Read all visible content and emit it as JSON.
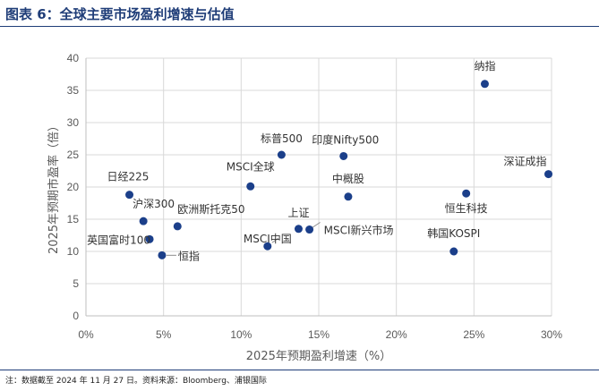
{
  "figure": {
    "title": "图表 6：全球主要市场盈利增速与估值",
    "note": "注：数据截至 2024 年 11 月 27 日。资料来源：Bloomberg、浦银国际"
  },
  "colors": {
    "accent": "#1f3d78",
    "point": "#1b3f8a",
    "grid": "#d9d9d9",
    "axis": "#bfbfbf",
    "text": "#595959"
  },
  "chart_data": {
    "type": "scatter",
    "title": "",
    "xlabel": "2025年预期盈利增速（%）",
    "ylabel": "2025年预期市盈率（倍）",
    "xlim": [
      0,
      30
    ],
    "ylim": [
      0,
      40
    ],
    "x_ticks": [
      0,
      5,
      10,
      15,
      20,
      25,
      30
    ],
    "x_tick_labels": [
      "0%",
      "5%",
      "10%",
      "15%",
      "20%",
      "25%",
      "30%"
    ],
    "y_ticks": [
      0,
      5,
      10,
      15,
      20,
      25,
      30,
      35,
      40
    ],
    "y_tick_labels": [
      "0",
      "5",
      "10",
      "15",
      "20",
      "25",
      "30",
      "35",
      "40"
    ],
    "grid": true,
    "points": [
      {
        "label": "纳指",
        "x": 25.7,
        "y": 36.0
      },
      {
        "label": "深证成指",
        "x": 29.8,
        "y": 22.0
      },
      {
        "label": "标普500",
        "x": 12.6,
        "y": 25.0
      },
      {
        "label": "印度Nifty500",
        "x": 16.6,
        "y": 24.8
      },
      {
        "label": "MSCI全球",
        "x": 10.6,
        "y": 20.1
      },
      {
        "label": "中概股",
        "x": 16.9,
        "y": 18.5
      },
      {
        "label": "恒生科技",
        "x": 24.5,
        "y": 19.0
      },
      {
        "label": "日经225",
        "x": 2.8,
        "y": 18.8
      },
      {
        "label": "沪深300",
        "x": 3.7,
        "y": 14.7
      },
      {
        "label": "欧洲斯托克50",
        "x": 5.9,
        "y": 13.9
      },
      {
        "label": "上证",
        "x": 13.7,
        "y": 13.5
      },
      {
        "label": "MSCI新兴市场",
        "x": 14.4,
        "y": 13.4
      },
      {
        "label": "MSCI中国",
        "x": 11.7,
        "y": 10.8
      },
      {
        "label": "英国富时100",
        "x": 4.1,
        "y": 11.9
      },
      {
        "label": "恒指",
        "x": 4.9,
        "y": 9.4
      },
      {
        "label": "韩国KOSPI",
        "x": 23.7,
        "y": 10.0
      }
    ]
  }
}
